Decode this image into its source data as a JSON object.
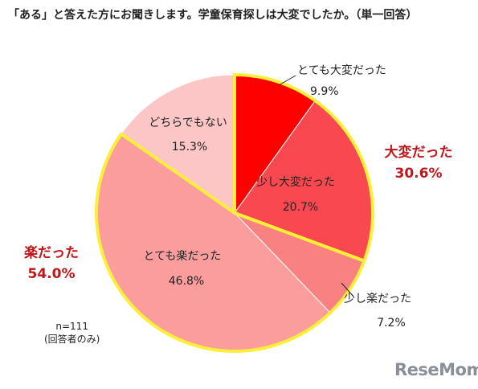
{
  "title": "「ある」と答えた方にお聞きします。学童保育探しは大変でしたか。（単一回答）",
  "note": {
    "n": "n=111",
    "basis": "(回答者のみ)"
  },
  "watermark": "ReseMom",
  "colors": {
    "とても大変だった": "#ff0000",
    "少し大変だった": "#f9484f",
    "少し楽だった": "#f98181",
    "とても楽だった": "#fb9d9d",
    "どちらでもない": "#fcc6c6",
    "group_outline": "#fcef3a",
    "group_label": "#c0161b"
  },
  "chart_data": {
    "type": "pie",
    "unit": "%",
    "start_angle": "12 o'clock",
    "direction": "clockwise",
    "slices": [
      {
        "label": "とても大変だった",
        "value": 9.9,
        "value_label": "9.9%"
      },
      {
        "label": "少し大変だった",
        "value": 20.7,
        "value_label": "20.7%"
      },
      {
        "label": "少し楽だった",
        "value": 7.2,
        "value_label": "7.2%"
      },
      {
        "label": "とても楽だった",
        "value": 46.8,
        "value_label": "46.8%"
      },
      {
        "label": "どちらでもない",
        "value": 15.3,
        "value_label": "15.3%"
      }
    ],
    "groups": [
      {
        "label": "大変だった",
        "value": 30.6,
        "value_label": "30.6%",
        "members": [
          "とても大変だった",
          "少し大変だった"
        ]
      },
      {
        "label": "楽だった",
        "value": 54.0,
        "value_label": "54.0%",
        "members": [
          "少し楽だった",
          "とても楽だった"
        ]
      }
    ]
  }
}
